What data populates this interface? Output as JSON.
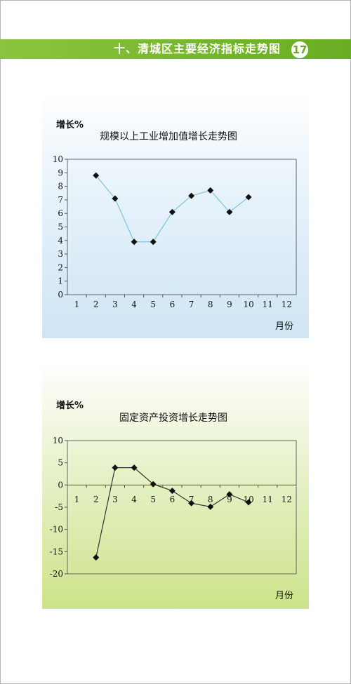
{
  "header": {
    "title": "十、清城区主要经济指标走势图",
    "page_number": "17",
    "band_color": "#78b82c"
  },
  "chart_data": [
    {
      "type": "line",
      "title": "规模以上工业增加值增长走势图",
      "ylabel": "增长%",
      "xlabel": "月份",
      "x_ticks": [
        1,
        2,
        3,
        4,
        5,
        6,
        7,
        8,
        9,
        10,
        11,
        12
      ],
      "y_ticks": [
        0,
        1,
        2,
        3,
        4,
        5,
        6,
        7,
        8,
        9,
        10
      ],
      "xlim": [
        0.5,
        12.5
      ],
      "ylim": [
        0,
        10
      ],
      "series": [
        {
          "x": [
            2,
            3,
            4,
            5,
            6,
            7,
            8,
            9,
            10
          ],
          "values": [
            8.8,
            7.1,
            3.9,
            3.9,
            6.1,
            7.3,
            7.7,
            6.1,
            7.2
          ],
          "line_color": "#7ec3e6",
          "marker": "diamond"
        }
      ]
    },
    {
      "type": "line",
      "title": "固定资产投资增长走势图",
      "ylabel": "增长%",
      "xlabel": "月份",
      "x_ticks": [
        1,
        2,
        3,
        4,
        5,
        6,
        7,
        8,
        9,
        10,
        11,
        12
      ],
      "y_ticks": [
        10,
        5,
        0,
        -5,
        -10,
        -15,
        -20
      ],
      "xlim": [
        0.5,
        12.5
      ],
      "ylim": [
        -20,
        10
      ],
      "series": [
        {
          "x": [
            2,
            3,
            4,
            5,
            6,
            7,
            8,
            9,
            10
          ],
          "values": [
            -16.3,
            3.9,
            3.9,
            0.2,
            -1.3,
            -4.1,
            -4.9,
            -2.1,
            -3.9
          ],
          "line_color": "#333333",
          "marker": "diamond"
        }
      ]
    }
  ]
}
